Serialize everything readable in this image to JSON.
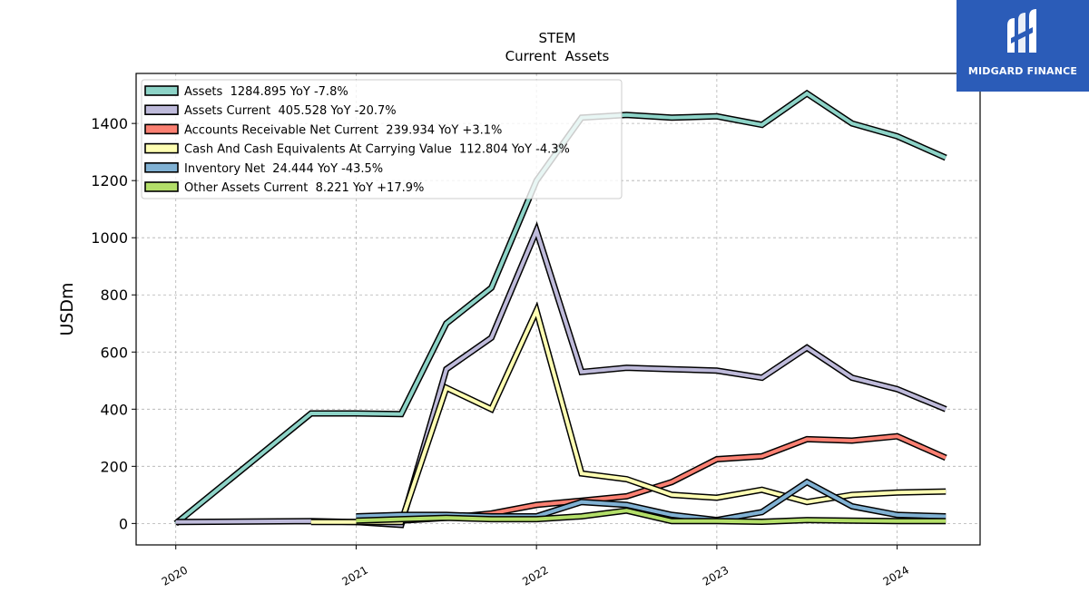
{
  "chart_data": {
    "type": "line",
    "title": "STEM",
    "subtitle": "Current  Assets",
    "ylabel": "USDm",
    "xlabel": "",
    "ylim": [
      -75,
      1575
    ],
    "xlim": [
      2019.78,
      2024.46
    ],
    "yticks": [
      0,
      200,
      400,
      600,
      800,
      1000,
      1200,
      1400
    ],
    "xticks": [
      2020,
      2021,
      2022,
      2023,
      2024
    ],
    "grid": true,
    "legend_position": "top-left",
    "series": [
      {
        "name": "Assets  1284.895 YoY -7.8%",
        "color": "#8dd3c7",
        "points": [
          [
            2020.0,
            0
          ],
          [
            2020.75,
            385
          ],
          [
            2021.0,
            385
          ],
          [
            2021.25,
            383
          ],
          [
            2021.5,
            700
          ],
          [
            2021.75,
            825
          ],
          [
            2022.0,
            1200
          ],
          [
            2022.25,
            1420
          ],
          [
            2022.5,
            1430
          ],
          [
            2022.75,
            1420
          ],
          [
            2023.0,
            1425
          ],
          [
            2023.25,
            1395
          ],
          [
            2023.5,
            1505
          ],
          [
            2023.75,
            1400
          ],
          [
            2024.0,
            1355
          ],
          [
            2024.27,
            1280
          ]
        ]
      },
      {
        "name": "Assets Current  405.528 YoY -20.7%",
        "color": "#bebada",
        "points": [
          [
            2020.0,
            5
          ],
          [
            2020.75,
            8
          ],
          [
            2021.0,
            5
          ],
          [
            2021.25,
            -5
          ],
          [
            2021.5,
            540
          ],
          [
            2021.75,
            650
          ],
          [
            2022.0,
            1025
          ],
          [
            2022.25,
            530
          ],
          [
            2022.5,
            545
          ],
          [
            2022.75,
            540
          ],
          [
            2023.0,
            535
          ],
          [
            2023.25,
            510
          ],
          [
            2023.5,
            615
          ],
          [
            2023.75,
            510
          ],
          [
            2024.0,
            470
          ],
          [
            2024.27,
            400
          ]
        ]
      },
      {
        "name": "Accounts Receivable Net Current  239.934 YoY +3.1%",
        "color": "#fb8072",
        "points": [
          [
            2021.0,
            5
          ],
          [
            2021.25,
            10
          ],
          [
            2021.5,
            20
          ],
          [
            2021.75,
            35
          ],
          [
            2022.0,
            65
          ],
          [
            2022.25,
            80
          ],
          [
            2022.5,
            95
          ],
          [
            2022.75,
            145
          ],
          [
            2023.0,
            225
          ],
          [
            2023.25,
            235
          ],
          [
            2023.5,
            295
          ],
          [
            2023.75,
            290
          ],
          [
            2024.0,
            305
          ],
          [
            2024.27,
            230
          ]
        ]
      },
      {
        "name": "Cash And Cash Equivalents At Carrying Value  112.804 YoY -4.3%",
        "color": "#ffffb3",
        "points": [
          [
            2020.75,
            5
          ],
          [
            2021.0,
            5
          ],
          [
            2021.25,
            5
          ],
          [
            2021.5,
            475
          ],
          [
            2021.75,
            400
          ],
          [
            2022.0,
            745
          ],
          [
            2022.25,
            175
          ],
          [
            2022.5,
            155
          ],
          [
            2022.75,
            100
          ],
          [
            2023.0,
            90
          ],
          [
            2023.25,
            118
          ],
          [
            2023.5,
            75
          ],
          [
            2023.75,
            100
          ],
          [
            2024.0,
            108
          ],
          [
            2024.27,
            112
          ]
        ]
      },
      {
        "name": "Inventory Net  24.444 YoY -43.5%",
        "color": "#80b1d3",
        "points": [
          [
            2021.0,
            25
          ],
          [
            2021.25,
            30
          ],
          [
            2021.5,
            30
          ],
          [
            2021.75,
            25
          ],
          [
            2022.0,
            25
          ],
          [
            2022.25,
            75
          ],
          [
            2022.5,
            65
          ],
          [
            2022.75,
            30
          ],
          [
            2023.0,
            12
          ],
          [
            2023.25,
            40
          ],
          [
            2023.5,
            145
          ],
          [
            2023.75,
            60
          ],
          [
            2024.0,
            30
          ],
          [
            2024.27,
            25
          ]
        ]
      },
      {
        "name": "Other Assets Current  8.221 YoY +17.9%",
        "color": "#b3de69",
        "points": [
          [
            2021.0,
            10
          ],
          [
            2021.25,
            15
          ],
          [
            2021.5,
            20
          ],
          [
            2021.75,
            15
          ],
          [
            2022.0,
            15
          ],
          [
            2022.25,
            25
          ],
          [
            2022.5,
            45
          ],
          [
            2022.75,
            8
          ],
          [
            2023.0,
            8
          ],
          [
            2023.25,
            6
          ],
          [
            2023.5,
            12
          ],
          [
            2023.75,
            10
          ],
          [
            2024.0,
            8
          ],
          [
            2024.27,
            8
          ]
        ]
      }
    ]
  },
  "logo": {
    "text": "MIDGARD FINANCE"
  }
}
